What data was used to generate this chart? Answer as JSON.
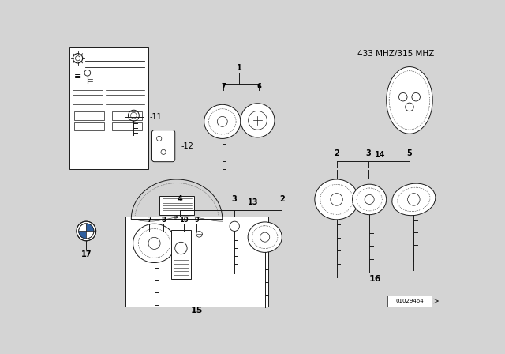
{
  "bg_color": "#d4d4d4",
  "line_color": "#1a1a1a",
  "title": "433 MHZ/315 MHZ",
  "part_number": "01029464"
}
